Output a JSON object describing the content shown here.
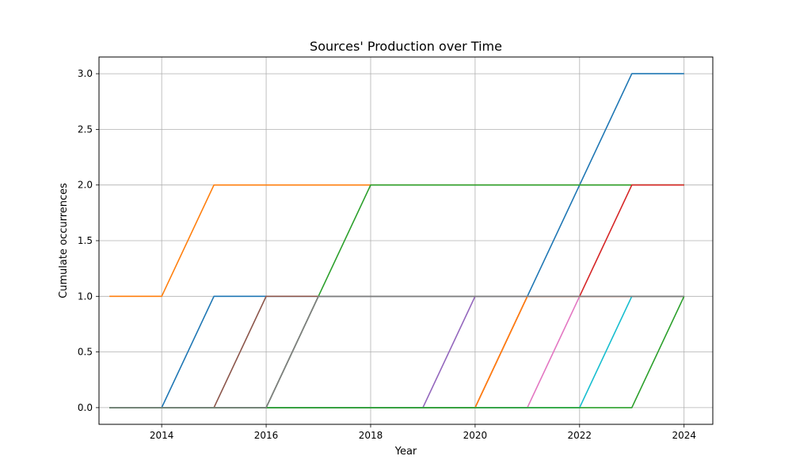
{
  "chart_data": {
    "type": "line",
    "title": "Sources' Production over Time",
    "xlabel": "Year",
    "ylabel": "Cumulate occurrences",
    "x": [
      2013,
      2014,
      2015,
      2016,
      2017,
      2018,
      2019,
      2020,
      2021,
      2022,
      2023,
      2024
    ],
    "xlim": [
      2012.8,
      2024.55
    ],
    "ylim": [
      -0.15,
      3.15
    ],
    "xticks": [
      "2014",
      "2016",
      "2018",
      "2020",
      "2022",
      "2024"
    ],
    "yticks": [
      "0.0",
      "0.5",
      "1.0",
      "1.5",
      "2.0",
      "2.5",
      "3.0"
    ],
    "grid": true,
    "series": [
      {
        "color": "#1f77b4",
        "values": [
          0,
          0,
          1,
          1,
          1,
          1,
          1,
          1,
          1,
          2,
          3,
          3
        ]
      },
      {
        "color": "#ff7f0e",
        "values": [
          1,
          1,
          2,
          2,
          2,
          2,
          2,
          2,
          2,
          2,
          2,
          2
        ]
      },
      {
        "color": "#2ca02c",
        "values": [
          0,
          0,
          0,
          0,
          1,
          2,
          2,
          2,
          2,
          2,
          2,
          2
        ]
      },
      {
        "color": "#d62728",
        "values": [
          0,
          0,
          0,
          0,
          0,
          0,
          0,
          0,
          1,
          1,
          2,
          2
        ]
      },
      {
        "color": "#9467bd",
        "values": [
          0,
          0,
          0,
          0,
          0,
          0,
          0,
          1,
          1,
          1,
          1,
          1
        ]
      },
      {
        "color": "#8c564b",
        "values": [
          0,
          0,
          0,
          1,
          1,
          1,
          1,
          1,
          1,
          1,
          1,
          1
        ]
      },
      {
        "color": "#e377c2",
        "values": [
          0,
          0,
          0,
          0,
          0,
          0,
          0,
          0,
          0,
          1,
          1,
          1
        ]
      },
      {
        "color": "#7f7f7f",
        "values": [
          0,
          0,
          0,
          0,
          1,
          1,
          1,
          1,
          1,
          1,
          1,
          1
        ]
      },
      {
        "color": "#ff7f0e",
        "values": [
          0,
          0,
          0,
          0,
          0,
          0,
          0,
          0,
          1,
          1,
          1,
          1
        ]
      },
      {
        "color": "#17becf",
        "values": [
          0,
          0,
          0,
          0,
          0,
          0,
          0,
          0,
          0,
          0,
          1,
          1
        ]
      },
      {
        "color": "#2ca02c",
        "values": [
          0,
          0,
          0,
          0,
          0,
          0,
          0,
          0,
          0,
          0,
          0,
          1
        ]
      },
      {
        "color": "#7f7f7f",
        "values": [
          0,
          0,
          0,
          0,
          1,
          1,
          1,
          1,
          1,
          1,
          1,
          1
        ]
      }
    ]
  }
}
